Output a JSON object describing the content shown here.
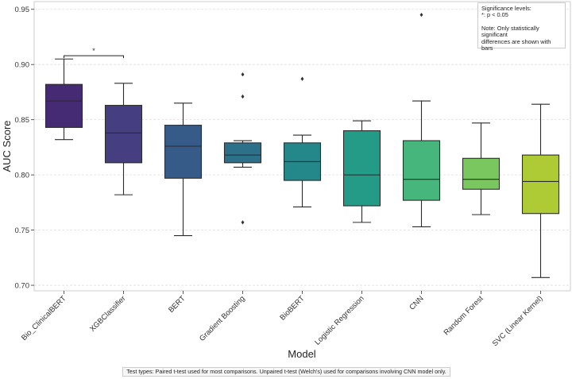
{
  "chart_data": {
    "type": "box",
    "title": "",
    "xlabel": "Model",
    "ylabel": "AUC Score",
    "ylim": [
      0.695,
      0.957
    ],
    "yticks": [
      "0.70",
      "0.75",
      "0.80",
      "0.85",
      "0.90",
      "0.95"
    ],
    "ytick_values": [
      0.7,
      0.75,
      0.8,
      0.85,
      0.9,
      0.95
    ],
    "grid": true,
    "categories": [
      "Bio_ClinicalBERT",
      "XGBClassifier",
      "BERT",
      "Gradient Boosting",
      "BioBERT",
      "Logistic Regression",
      "CNN",
      "Random Forest",
      "SVC (Linear Kernel)"
    ],
    "boxes": [
      {
        "name": "Bio_ClinicalBERT",
        "whisker_low": 0.832,
        "q1": 0.843,
        "median": 0.867,
        "q3": 0.882,
        "whisker_high": 0.905,
        "outliers": [],
        "color": "#452a74"
      },
      {
        "name": "XGBClassifier",
        "whisker_low": 0.782,
        "q1": 0.811,
        "median": 0.838,
        "q3": 0.863,
        "whisker_high": 0.883,
        "outliers": [],
        "color": "#453f82"
      },
      {
        "name": "BERT",
        "whisker_low": 0.745,
        "q1": 0.797,
        "median": 0.826,
        "q3": 0.845,
        "whisker_high": 0.865,
        "outliers": [],
        "color": "#375b89"
      },
      {
        "name": "Gradient Boosting",
        "whisker_low": 0.807,
        "q1": 0.811,
        "median": 0.818,
        "q3": 0.829,
        "whisker_high": 0.831,
        "outliers": [
          0.757,
          0.871,
          0.891
        ],
        "color": "#2c7089"
      },
      {
        "name": "BioBERT",
        "whisker_low": 0.771,
        "q1": 0.795,
        "median": 0.812,
        "q3": 0.829,
        "whisker_high": 0.836,
        "outliers": [
          0.887
        ],
        "color": "#24888a"
      },
      {
        "name": "Logistic Regression",
        "whisker_low": 0.757,
        "q1": 0.772,
        "median": 0.8,
        "q3": 0.84,
        "whisker_high": 0.849,
        "outliers": [],
        "color": "#239b86"
      },
      {
        "name": "CNN",
        "whisker_low": 0.753,
        "q1": 0.777,
        "median": 0.796,
        "q3": 0.831,
        "whisker_high": 0.867,
        "outliers": [
          0.945
        ],
        "color": "#47b67c"
      },
      {
        "name": "Random Forest",
        "whisker_low": 0.764,
        "q1": 0.787,
        "median": 0.796,
        "q3": 0.815,
        "whisker_high": 0.847,
        "outliers": [],
        "color": "#79c75e"
      },
      {
        "name": "SVC (Linear Kernel)",
        "whisker_low": 0.707,
        "q1": 0.765,
        "median": 0.794,
        "q3": 0.818,
        "whisker_high": 0.864,
        "outliers": [],
        "color": "#aecb35"
      }
    ],
    "significance_bars": [
      {
        "from": "Bio_ClinicalBERT",
        "to": "XGBClassifier",
        "y": 0.908,
        "label": "*"
      }
    ]
  },
  "legend": {
    "title": "Significance levels:",
    "line1": "*: p < 0.05",
    "note_line1": "Note: Only statistically significant",
    "note_line2": "differences are shown with bars"
  },
  "footnote": "Test types: Paired t-test used for most comparisons. Unpaired t-test (Welch's) used for comparisons involving CNN model only."
}
